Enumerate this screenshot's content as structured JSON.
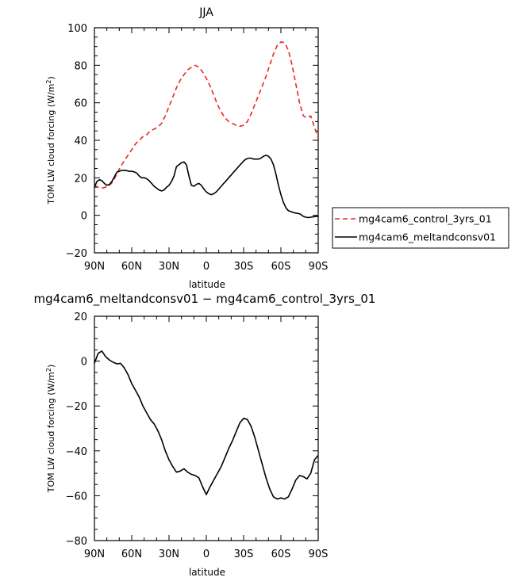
{
  "chart_data": [
    {
      "type": "line",
      "title": "JJA",
      "xlabel": "latitude",
      "ylabel": "TOM LW cloud forcing (W/m",
      "ylabel_sup": "2",
      "ylabel_end": ")",
      "xlim": [
        90,
        -90
      ],
      "ylim": [
        -20,
        100
      ],
      "xticks": [
        90,
        60,
        30,
        0,
        -30,
        -60,
        -90
      ],
      "xtick_labels": [
        "90N",
        "60N",
        "30N",
        "0",
        "30S",
        "60S",
        "90S"
      ],
      "yticks": [
        -20,
        0,
        20,
        40,
        60,
        80,
        100
      ],
      "ytick_labels": [
        "−20",
        "0",
        "20",
        "40",
        "60",
        "80",
        "100"
      ],
      "legend_position": "right",
      "series": [
        {
          "name": "mg4cam6_control_3yrs_01",
          "color": "#e8281e",
          "style": "dashed",
          "x": [
            90,
            87,
            84,
            81,
            78,
            75,
            72,
            69,
            66,
            63,
            60,
            57,
            54,
            51,
            48,
            45,
            42,
            39,
            36,
            33,
            30,
            27,
            24,
            21,
            18,
            15,
            12,
            9,
            6,
            3,
            0,
            -3,
            -6,
            -9,
            -12,
            -15,
            -18,
            -21,
            -24,
            -27,
            -30,
            -33,
            -36,
            -39,
            -42,
            -45,
            -48,
            -51,
            -54,
            -57,
            -60,
            -63,
            -66,
            -69,
            -72,
            -75,
            -78,
            -81,
            -84,
            -87,
            -90
          ],
          "y": [
            16,
            15,
            14.5,
            15,
            16,
            18,
            22,
            26,
            29,
            32,
            35,
            38,
            40,
            42,
            43,
            45,
            46,
            47,
            49,
            53,
            58,
            63,
            68,
            72,
            75,
            77.5,
            79,
            80,
            79,
            76.5,
            73,
            69,
            64,
            59,
            55,
            52,
            50,
            49,
            48,
            47.5,
            48,
            50,
            54,
            59,
            64,
            69,
            74,
            80,
            86,
            90.5,
            92.5,
            92,
            88,
            80,
            70,
            60,
            53,
            52,
            53,
            47,
            41
          ]
        },
        {
          "name": "mg4cam6_meltandconsv01",
          "color": "#000000",
          "style": "solid",
          "x": [
            90,
            88,
            86,
            84,
            82,
            80,
            78,
            76,
            74,
            72,
            70,
            68,
            66,
            64,
            62,
            60,
            58,
            56,
            54,
            52,
            50,
            48,
            46,
            44,
            42,
            40,
            38,
            36,
            34,
            32,
            30,
            28,
            26,
            24,
            22,
            20,
            18,
            16,
            14,
            12,
            10,
            8,
            6,
            4,
            2,
            0,
            -2,
            -4,
            -6,
            -8,
            -10,
            -12,
            -14,
            -16,
            -18,
            -20,
            -22,
            -24,
            -26,
            -28,
            -30,
            -32,
            -34,
            -36,
            -38,
            -40,
            -42,
            -44,
            -46,
            -48,
            -50,
            -52,
            -54,
            -56,
            -58,
            -60,
            -62,
            -64,
            -66,
            -68,
            -70,
            -72,
            -74,
            -76,
            -78,
            -80,
            -82,
            -84,
            -86,
            -88,
            -90
          ],
          "y": [
            15,
            18,
            19,
            18.5,
            17,
            16,
            16.5,
            18,
            20.5,
            23,
            23.5,
            24,
            24,
            23.8,
            23.5,
            23.5,
            23.2,
            22.5,
            21,
            20,
            20,
            19.5,
            18.5,
            17,
            15.5,
            14.5,
            13.5,
            13,
            13.5,
            15,
            16,
            18,
            21,
            26,
            27,
            28,
            28.5,
            27,
            21,
            16,
            15.5,
            16.5,
            17,
            16,
            14,
            12.5,
            11.5,
            11,
            11.5,
            12.5,
            14,
            15.5,
            17,
            18.5,
            20,
            21.5,
            23,
            24.5,
            26,
            27.5,
            29,
            30,
            30.5,
            30.5,
            30,
            30,
            30,
            30.5,
            31.5,
            32,
            31.5,
            30,
            27,
            22,
            16,
            11,
            7,
            4,
            2.5,
            2,
            1.5,
            1.2,
            1,
            0.5,
            -0.5,
            -1,
            -1.2,
            -1,
            -0.8,
            -0.6,
            -0.5
          ]
        }
      ]
    },
    {
      "type": "line",
      "title": "mg4cam6_meltandconsv01 − mg4cam6_control_3yrs_01",
      "xlabel": "latitude",
      "ylabel": "TOM LW cloud forcing (W/m",
      "ylabel_sup": "2",
      "ylabel_end": ")",
      "xlim": [
        90,
        -90
      ],
      "ylim": [
        -80,
        20
      ],
      "xticks": [
        90,
        60,
        30,
        0,
        -30,
        -60,
        -90
      ],
      "xtick_labels": [
        "90N",
        "60N",
        "30N",
        "0",
        "30S",
        "60S",
        "90S"
      ],
      "yticks": [
        -80,
        -60,
        -40,
        -20,
        0,
        20
      ],
      "ytick_labels": [
        "−80",
        "−60",
        "−40",
        "−20",
        "0",
        "20"
      ],
      "series": [
        {
          "color": "#000000",
          "style": "solid",
          "x": [
            90,
            87,
            84,
            81,
            78,
            75,
            72,
            69,
            66,
            63,
            60,
            57,
            54,
            51,
            48,
            45,
            42,
            39,
            36,
            33,
            30,
            27,
            24,
            21,
            18,
            15,
            12,
            9,
            6,
            3,
            0,
            -3,
            -6,
            -9,
            -12,
            -15,
            -18,
            -21,
            -24,
            -27,
            -30,
            -33,
            -36,
            -39,
            -42,
            -45,
            -48,
            -51,
            -54,
            -57,
            -60,
            -63,
            -66,
            -69,
            -72,
            -75,
            -78,
            -81,
            -84,
            -87,
            -90
          ],
          "y": [
            -1,
            3.5,
            4.5,
            2,
            0.5,
            -0.5,
            -1.2,
            -1,
            -3,
            -6,
            -10,
            -13,
            -16,
            -20,
            -23,
            -26,
            -28,
            -31,
            -35,
            -40,
            -44,
            -47,
            -49.5,
            -49,
            -48,
            -49.5,
            -50.5,
            -51,
            -52,
            -56,
            -59.5,
            -56,
            -53,
            -50,
            -47,
            -43,
            -39,
            -35.5,
            -31.5,
            -27.5,
            -25.5,
            -26,
            -29,
            -34,
            -40,
            -46,
            -52,
            -57,
            -60.5,
            -61.5,
            -61,
            -61.5,
            -60.5,
            -57,
            -53,
            -51,
            -51.5,
            -52.5,
            -50,
            -44,
            -42
          ]
        }
      ]
    }
  ]
}
